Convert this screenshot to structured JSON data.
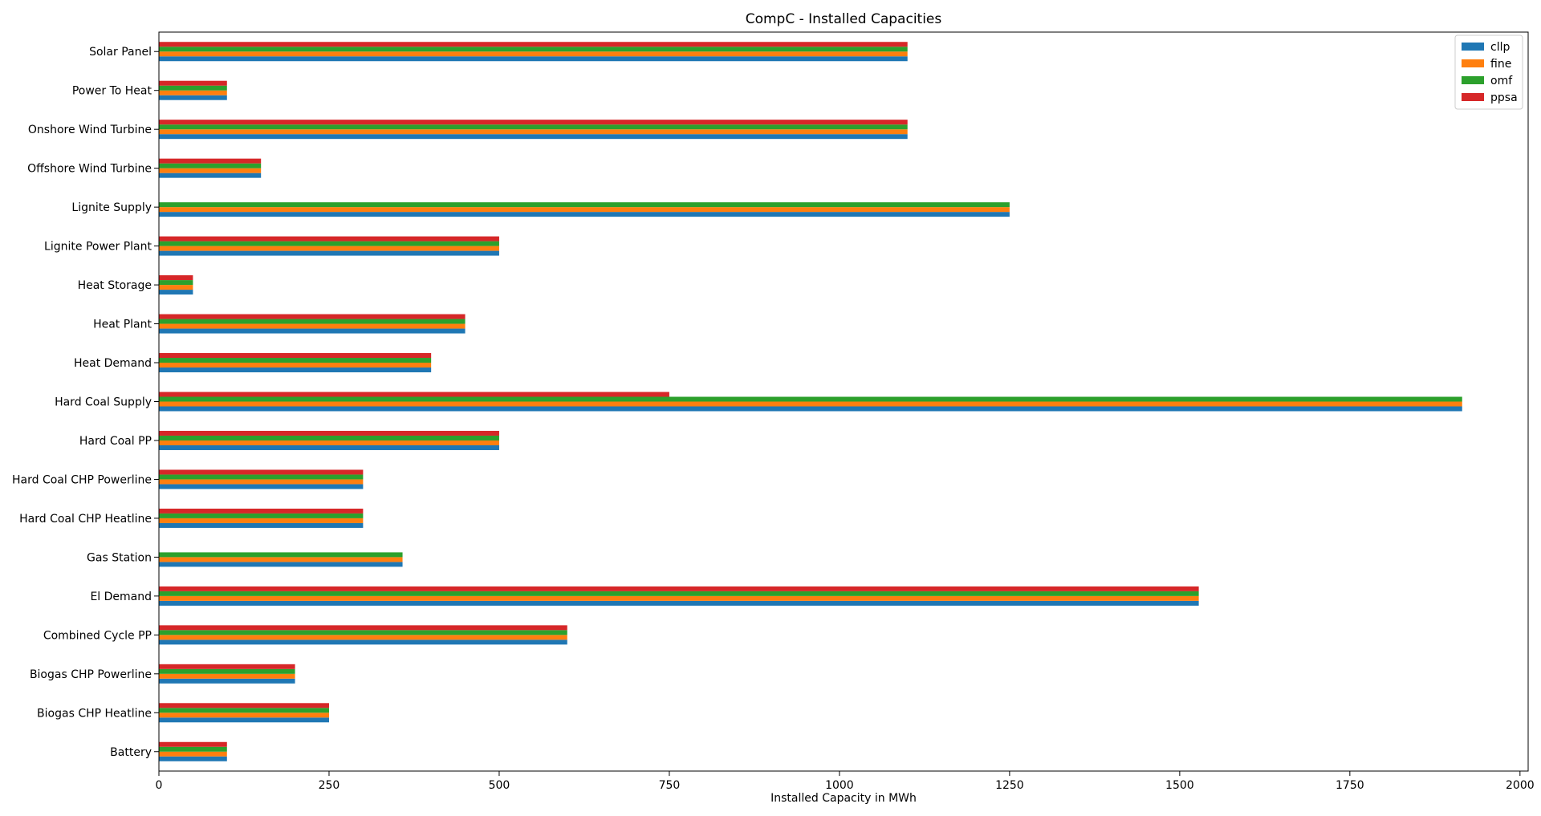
{
  "chart_data": {
    "type": "bar",
    "orientation": "horizontal",
    "title": "CompC - Installed Capacities",
    "xlabel": "Installed Capacity in MWh",
    "ylabel": "",
    "xlim": [
      0,
      2012
    ],
    "xticks": [
      0,
      250,
      500,
      750,
      1000,
      1250,
      1500,
      1750,
      2000
    ],
    "grid": false,
    "legend_position": "top-right",
    "categories": [
      "Battery",
      "Biogas CHP Heatline",
      "Biogas CHP Powerline",
      "Combined Cycle PP",
      "El Demand",
      "Gas Station",
      "Hard Coal CHP Heatline",
      "Hard Coal CHP Powerline",
      "Hard Coal PP",
      "Hard Coal Supply",
      "Heat Demand",
      "Heat Plant",
      "Heat Storage",
      "Lignite Power Plant",
      "Lignite Supply",
      "Offshore Wind Turbine",
      "Onshore Wind Turbine",
      "Power To Heat",
      "Solar Panel"
    ],
    "series": [
      {
        "name": "cllp",
        "color": "#1f77b4",
        "values": [
          100,
          250,
          200,
          600,
          1528,
          358,
          300,
          300,
          500,
          1915,
          400,
          450,
          50,
          500,
          1250,
          150,
          1100,
          100,
          1100
        ]
      },
      {
        "name": "fine",
        "color": "#ff7f0e",
        "values": [
          100,
          250,
          200,
          600,
          1528,
          358,
          300,
          300,
          500,
          1915,
          400,
          450,
          50,
          500,
          1250,
          150,
          1100,
          100,
          1100
        ]
      },
      {
        "name": "omf",
        "color": "#2ca02c",
        "values": [
          100,
          250,
          200,
          600,
          1528,
          358,
          300,
          300,
          500,
          1915,
          400,
          450,
          50,
          500,
          1250,
          150,
          1100,
          100,
          1100
        ]
      },
      {
        "name": "ppsa",
        "color": "#d62728",
        "values": [
          100,
          250,
          200,
          600,
          1528,
          0,
          300,
          300,
          500,
          750,
          400,
          450,
          50,
          500,
          0,
          150,
          1100,
          100,
          1100
        ]
      }
    ]
  }
}
